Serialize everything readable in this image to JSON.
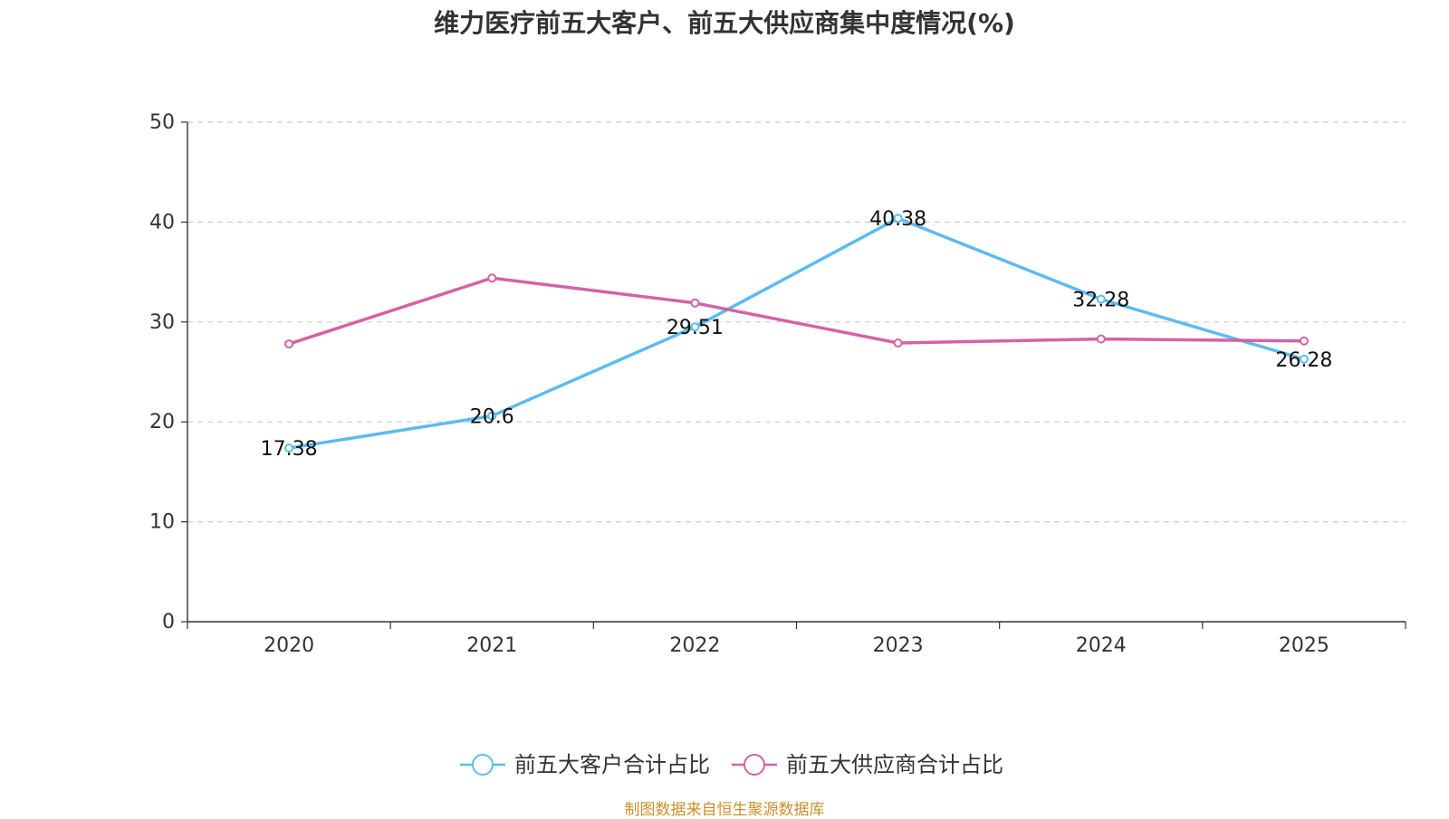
{
  "chart_data": {
    "type": "line",
    "title": "维力医疗前五大客户、前五大供应商集中度情况(%)",
    "categories": [
      "2020",
      "2021",
      "2022",
      "2023",
      "2024",
      "2025"
    ],
    "ylim": [
      0,
      50
    ],
    "yticks": [
      0,
      10,
      20,
      30,
      40,
      50
    ],
    "xlabel": "",
    "ylabel": "",
    "grid": true,
    "legend_position": "bottom-center",
    "series": [
      {
        "name": "前五大客户合计占比",
        "color": "#5bbcf0",
        "values": [
          17.38,
          20.6,
          29.51,
          40.38,
          32.28,
          26.28
        ],
        "labels": [
          "17.38",
          "20.6",
          "29.51",
          "40.38",
          "32.28",
          "26.28"
        ]
      },
      {
        "name": "前五大供应商合计占比",
        "color": "#d462a6",
        "values": [
          27.8,
          34.4,
          31.9,
          27.9,
          28.3,
          28.1
        ],
        "labels": null
      }
    ]
  },
  "footer": {
    "source": "制图数据来自恒生聚源数据库"
  }
}
